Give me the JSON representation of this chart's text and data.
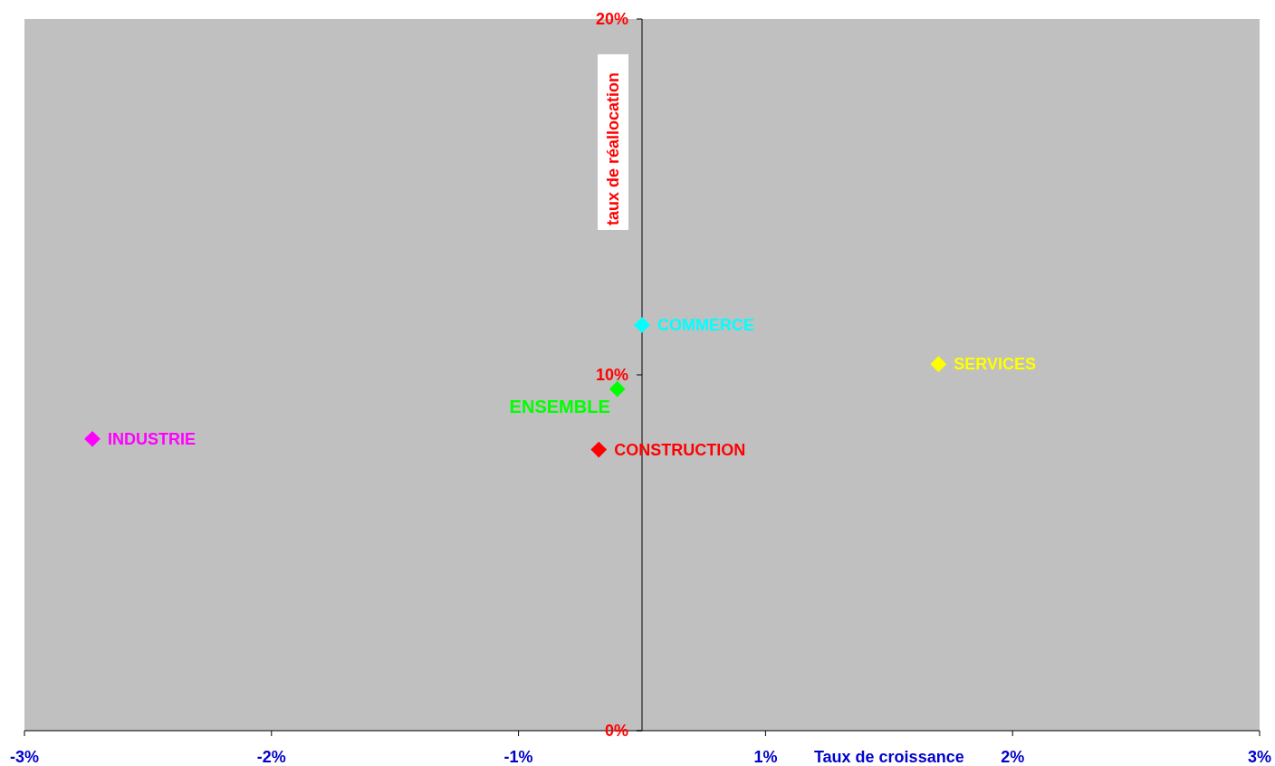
{
  "chart_data": {
    "type": "scatter",
    "xlabel": "Taux de croissance",
    "ylabel": "taux de réallocation",
    "xlim": [
      -3,
      3
    ],
    "ylim": [
      0,
      20
    ],
    "xticks": [
      {
        "value": -3,
        "label": "-3%"
      },
      {
        "value": -1.8,
        "label": "-2%"
      },
      {
        "value": -0.6,
        "label": "-1%"
      },
      {
        "value": 0.6,
        "label": "1%"
      },
      {
        "value": 1.8,
        "label": "2%"
      },
      {
        "value": 3,
        "label": "3%"
      }
    ],
    "yticks": [
      {
        "value": 0,
        "label": "0%"
      },
      {
        "value": 10,
        "label": "10%"
      },
      {
        "value": 20,
        "label": "20%"
      }
    ],
    "marker": "diamond",
    "grid": false,
    "series": [
      {
        "name": "COMMERCE",
        "color": "#00ffff",
        "x": [
          0
        ],
        "values": [
          11.4
        ]
      },
      {
        "name": "SERVICES",
        "color": "#ffff00",
        "x": [
          1.44
        ],
        "values": [
          10.3
        ]
      },
      {
        "name": "ENSEMBLE",
        "color": "#00ff00",
        "x": [
          -0.12
        ],
        "values": [
          9.6
        ]
      },
      {
        "name": "CONSTRUCTION",
        "color": "#ff0000",
        "x": [
          -0.21
        ],
        "values": [
          7.9
        ]
      },
      {
        "name": "INDUSTRIE",
        "color": "#ff00ff",
        "x": [
          -2.67
        ],
        "values": [
          8.2
        ]
      }
    ]
  }
}
